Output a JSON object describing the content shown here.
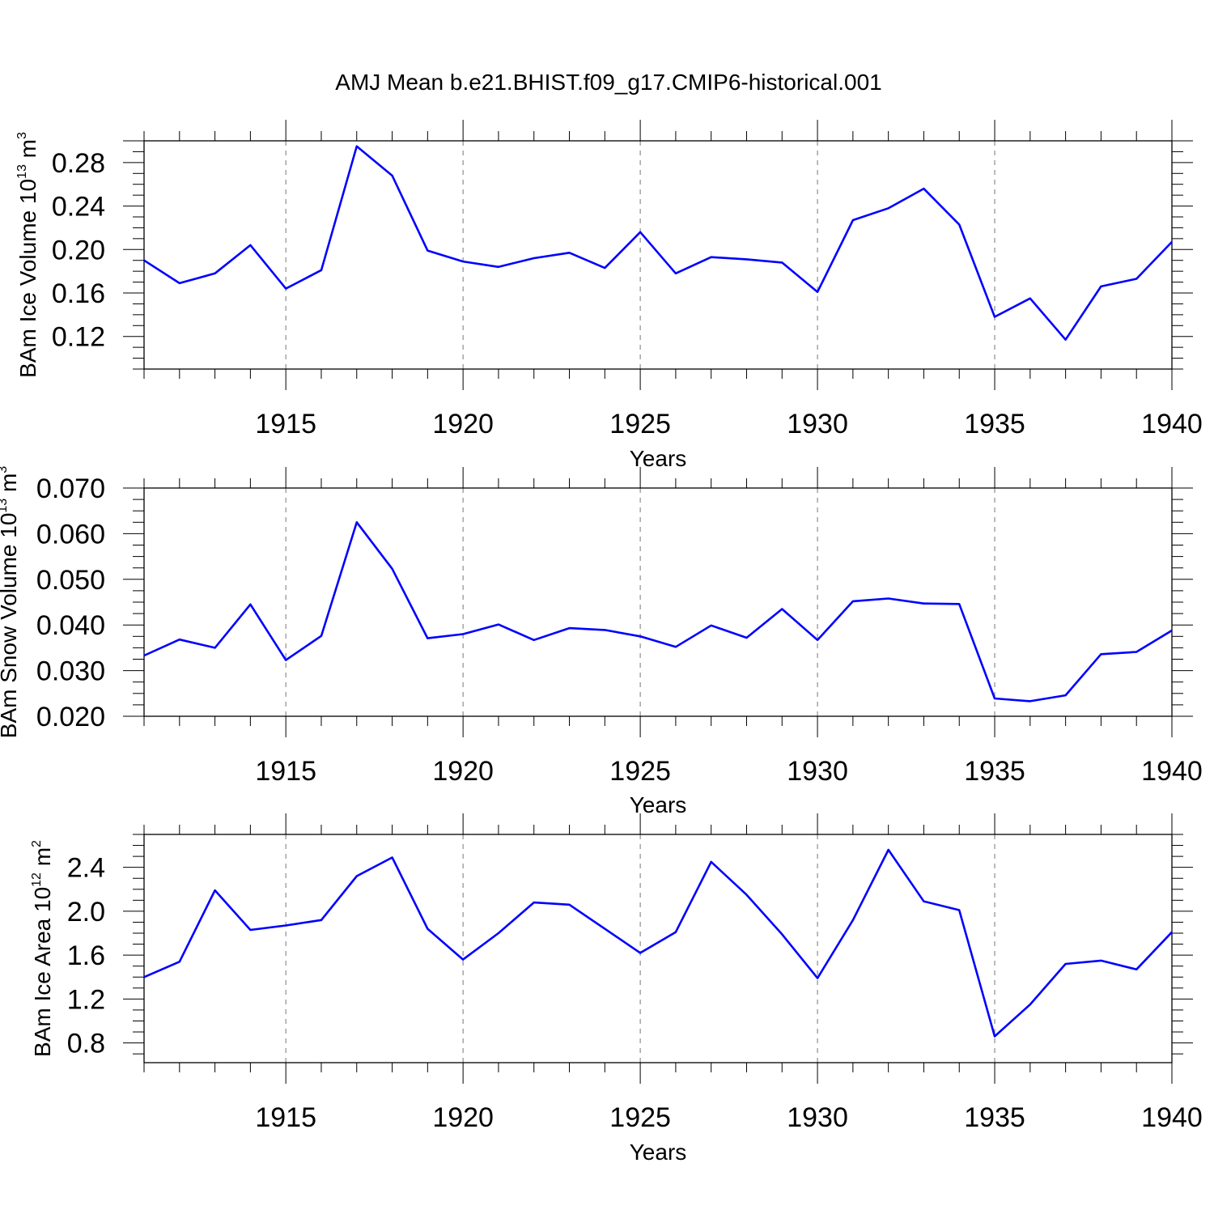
{
  "figure": {
    "title": "AMJ Mean b.e21.BHIST.f09_g17.CMIP6-historical.001",
    "line_color": "#0000ff",
    "grid": "vertical dashed at major x ticks"
  },
  "chart_data": [
    {
      "type": "line",
      "title": "AMJ Mean b.e21.BHIST.f09_g17.CMIP6-historical.001",
      "xlabel": "Years",
      "ylabel": {
        "prefix": "BAm Ice Volume 10",
        "exponent": "13",
        "unit": " m",
        "unit_exponent": "3"
      },
      "xlim": [
        1911,
        1940
      ],
      "ylim": [
        0.09,
        0.3
      ],
      "x_ticks": [
        1915,
        1920,
        1925,
        1930,
        1935,
        1940
      ],
      "y_ticks": [
        0.12,
        0.16,
        0.2,
        0.24,
        0.28
      ],
      "y_tick_labels": [
        "0.12",
        "0.16",
        "0.20",
        "0.24",
        "0.28"
      ],
      "x": [
        1911,
        1912,
        1913,
        1914,
        1915,
        1916,
        1917,
        1918,
        1919,
        1920,
        1921,
        1922,
        1923,
        1924,
        1925,
        1926,
        1927,
        1928,
        1929,
        1930,
        1931,
        1932,
        1933,
        1934,
        1935,
        1936,
        1937,
        1938,
        1939,
        1940
      ],
      "series": [
        {
          "values": [
            0.19,
            0.169,
            0.178,
            0.204,
            0.164,
            0.181,
            0.295,
            0.268,
            0.199,
            0.189,
            0.184,
            0.192,
            0.197,
            0.183,
            0.216,
            0.178,
            0.193,
            0.191,
            0.188,
            0.161,
            0.227,
            0.238,
            0.256,
            0.223,
            0.138,
            0.155,
            0.117,
            0.166,
            0.173,
            0.207
          ]
        }
      ]
    },
    {
      "type": "line",
      "xlabel": "Years",
      "ylabel": {
        "prefix": "BAm Snow Volume 10",
        "exponent": "13",
        "unit": " m",
        "unit_exponent": "3"
      },
      "xlim": [
        1911,
        1940
      ],
      "ylim": [
        0.02,
        0.07
      ],
      "x_ticks": [
        1915,
        1920,
        1925,
        1930,
        1935,
        1940
      ],
      "y_ticks": [
        0.02,
        0.03,
        0.04,
        0.05,
        0.06,
        0.07
      ],
      "y_tick_labels": [
        "0.020",
        "0.030",
        "0.040",
        "0.050",
        "0.060",
        "0.070"
      ],
      "x": [
        1911,
        1912,
        1913,
        1914,
        1915,
        1916,
        1917,
        1918,
        1919,
        1920,
        1921,
        1922,
        1923,
        1924,
        1925,
        1926,
        1927,
        1928,
        1929,
        1930,
        1931,
        1932,
        1933,
        1934,
        1935,
        1936,
        1937,
        1938,
        1939,
        1940
      ],
      "series": [
        {
          "values": [
            0.0333,
            0.0368,
            0.035,
            0.0445,
            0.0323,
            0.0376,
            0.0625,
            0.0523,
            0.0371,
            0.038,
            0.0401,
            0.0367,
            0.0393,
            0.0389,
            0.0375,
            0.0352,
            0.0399,
            0.0372,
            0.0435,
            0.0367,
            0.0452,
            0.0458,
            0.0447,
            0.0446,
            0.0239,
            0.0233,
            0.0246,
            0.0336,
            0.0341,
            0.0388
          ]
        }
      ]
    },
    {
      "type": "line",
      "xlabel": "Years",
      "ylabel": {
        "prefix": "BAm Ice Area 10",
        "exponent": "12",
        "unit": " m",
        "unit_exponent": "2"
      },
      "xlim": [
        1911,
        1940
      ],
      "ylim": [
        0.62,
        2.7
      ],
      "x_ticks": [
        1915,
        1920,
        1925,
        1930,
        1935,
        1940
      ],
      "y_ticks": [
        0.8,
        1.2,
        1.6,
        2.0,
        2.4
      ],
      "y_tick_labels": [
        "0.8",
        "1.2",
        "1.6",
        "2.0",
        "2.4"
      ],
      "x": [
        1911,
        1912,
        1913,
        1914,
        1915,
        1916,
        1917,
        1918,
        1919,
        1920,
        1921,
        1922,
        1923,
        1924,
        1925,
        1926,
        1927,
        1928,
        1929,
        1930,
        1931,
        1932,
        1933,
        1934,
        1935,
        1936,
        1937,
        1938,
        1939,
        1940
      ],
      "series": [
        {
          "values": [
            1.4,
            1.54,
            2.19,
            1.83,
            1.87,
            1.92,
            2.32,
            2.49,
            1.84,
            1.56,
            1.8,
            2.08,
            2.06,
            1.84,
            1.62,
            1.81,
            2.45,
            2.15,
            1.79,
            1.39,
            1.92,
            2.56,
            2.09,
            2.01,
            0.86,
            1.15,
            1.52,
            1.55,
            1.47,
            1.81
          ]
        }
      ]
    }
  ]
}
